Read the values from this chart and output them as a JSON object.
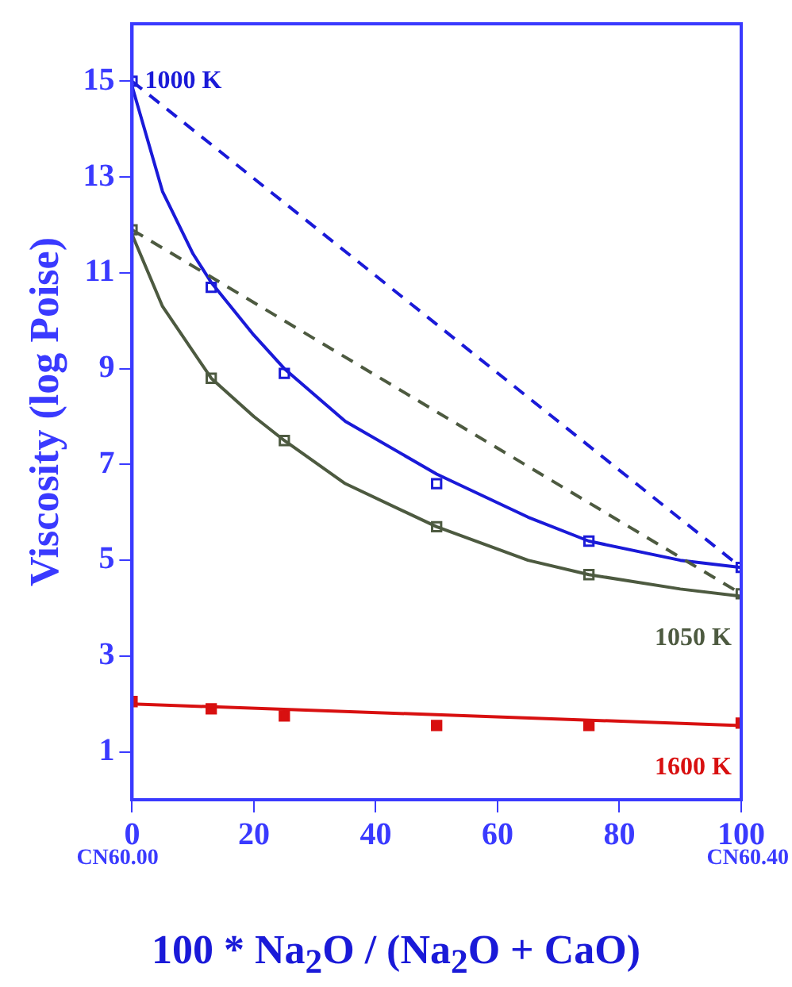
{
  "chart_data": {
    "type": "scatter",
    "xlabel": "100 * Na$_{2}$O / (Na$_{2}$O + CaO)",
    "ylabel": "Viscosity (log Poise)",
    "xlim": [
      0,
      100
    ],
    "xticks": [
      0,
      20,
      40,
      60,
      80,
      100
    ],
    "ylim": [
      0,
      16.2
    ],
    "yticks": [
      1,
      3,
      5,
      7,
      9,
      11,
      13,
      15
    ],
    "grid": false,
    "legend": false,
    "series": [
      {
        "type": "line",
        "color": "#1a1ad8",
        "line_style": "dashed",
        "marker": "none",
        "x": [
          0,
          100
        ],
        "values": [
          15,
          4.85
        ]
      },
      {
        "type": "line",
        "color": "#4d5a40",
        "line_style": "dashed",
        "marker": "none",
        "x": [
          0,
          100
        ],
        "values": [
          11.9,
          4.3
        ]
      },
      {
        "type": "line",
        "color": "#1a1ad8",
        "line_style": "solid",
        "marker": "none",
        "x": [
          0,
          5,
          10,
          13,
          20,
          25,
          35,
          50,
          65,
          75,
          90,
          100
        ],
        "values": [
          14.9,
          12.7,
          11.4,
          10.8,
          9.7,
          9.0,
          7.9,
          6.8,
          5.9,
          5.4,
          5.0,
          4.85
        ]
      },
      {
        "type": "line",
        "color": "#4d5a40",
        "line_style": "solid",
        "marker": "none",
        "x": [
          0,
          5,
          13,
          20,
          25,
          35,
          50,
          65,
          75,
          90,
          100
        ],
        "values": [
          11.8,
          10.3,
          8.8,
          8.0,
          7.5,
          6.6,
          5.7,
          5.0,
          4.7,
          4.4,
          4.25
        ]
      },
      {
        "type": "line",
        "color": "#d81010",
        "line_style": "solid",
        "marker": "none",
        "x": [
          0,
          100
        ],
        "values": [
          2.0,
          1.55
        ]
      },
      {
        "type": "scatter",
        "name": "1000 K",
        "color": "#1a1ad8",
        "marker": "square",
        "x": [
          0,
          13,
          25,
          50,
          75,
          100
        ],
        "values": [
          15,
          10.7,
          8.9,
          6.6,
          5.4,
          4.85
        ]
      },
      {
        "type": "scatter",
        "name": "1050 K",
        "color": "#4d5a40",
        "marker": "square",
        "x": [
          0,
          13,
          25,
          50,
          75,
          100
        ],
        "values": [
          11.9,
          8.8,
          7.5,
          5.7,
          4.7,
          4.3
        ]
      },
      {
        "type": "scatter",
        "name": "1600 K",
        "color": "#d81010",
        "marker": "square",
        "x": [
          0,
          13,
          25,
          50,
          75,
          100
        ],
        "values": [
          2.05,
          1.9,
          1.75,
          1.55,
          1.55,
          1.6
        ]
      }
    ],
    "annotations": [
      "CN60.00",
      "CN60.40"
    ]
  }
}
